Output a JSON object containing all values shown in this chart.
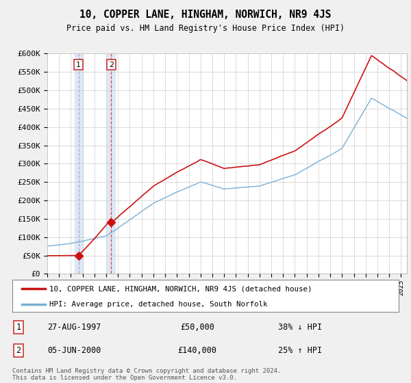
{
  "title": "10, COPPER LANE, HINGHAM, NORWICH, NR9 4JS",
  "subtitle": "Price paid vs. HM Land Registry's House Price Index (HPI)",
  "sale1_date": 1997.65,
  "sale1_price": 50000,
  "sale1_label": "1",
  "sale1_hpi_text": "38% ↓ HPI",
  "sale1_date_text": "27-AUG-1997",
  "sale2_date": 2000.43,
  "sale2_price": 140000,
  "sale2_label": "2",
  "sale2_hpi_text": "25% ↑ HPI",
  "sale2_date_text": "05-JUN-2000",
  "hpi_line_color": "#7aafd4",
  "price_line_color": "#cc1111",
  "marker_color": "#cc1111",
  "vline1_color": "#aaaacc",
  "vline2_color": "#dd4444",
  "highlight1_color": "#dde8f5",
  "highlight2_color": "#dde8f5",
  "grid_color": "#cccccc",
  "background_color": "#f0f0f0",
  "plot_bg_color": "#ffffff",
  "ylim": [
    0,
    600000
  ],
  "xlim_start": 1995.0,
  "xlim_end": 2025.5,
  "legend_label1": "10, COPPER LANE, HINGHAM, NORWICH, NR9 4JS (detached house)",
  "legend_label2": "HPI: Average price, detached house, South Norfolk",
  "footnote": "Contains HM Land Registry data © Crown copyright and database right 2024.\nThis data is licensed under the Open Government Licence v3.0.",
  "yticks": [
    0,
    50000,
    100000,
    150000,
    200000,
    250000,
    300000,
    350000,
    400000,
    450000,
    500000,
    550000,
    600000
  ],
  "ytick_labels": [
    "£0",
    "£50K",
    "£100K",
    "£150K",
    "£200K",
    "£250K",
    "£300K",
    "£350K",
    "£400K",
    "£450K",
    "£500K",
    "£550K",
    "£600K"
  ]
}
